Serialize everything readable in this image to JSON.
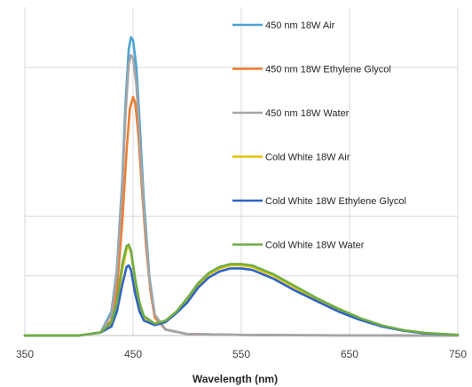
{
  "chart_data": {
    "type": "line",
    "title": "",
    "xlabel": "Wavelength (nm)",
    "ylabel": "",
    "xlim": [
      350,
      750
    ],
    "ylim": [
      0,
      1.0
    ],
    "x_ticks": [
      350,
      450,
      550,
      650,
      750
    ],
    "y_gridlines": [
      0.2,
      0.4
    ],
    "grid": "vertical and horizontal major gridlines",
    "legend_position": "right",
    "series": [
      {
        "name": "450 nm 18W Air",
        "color": "#4aa3d3",
        "points": [
          [
            350,
            0
          ],
          [
            400,
            0
          ],
          [
            420,
            0.01
          ],
          [
            430,
            0.08
          ],
          [
            435,
            0.22
          ],
          [
            440,
            0.52
          ],
          [
            443,
            0.78
          ],
          [
            446,
            0.96
          ],
          [
            448,
            1.0
          ],
          [
            450,
            0.99
          ],
          [
            453,
            0.9
          ],
          [
            456,
            0.72
          ],
          [
            460,
            0.45
          ],
          [
            465,
            0.2
          ],
          [
            470,
            0.07
          ],
          [
            480,
            0.02
          ],
          [
            500,
            0.005
          ],
          [
            550,
            0.002
          ],
          [
            600,
            0.001
          ],
          [
            750,
            0
          ]
        ]
      },
      {
        "name": "450 nm 18W Ethylene Glycol",
        "color": "#ed7d31",
        "points": [
          [
            350,
            0
          ],
          [
            400,
            0
          ],
          [
            420,
            0.01
          ],
          [
            430,
            0.05
          ],
          [
            435,
            0.15
          ],
          [
            440,
            0.38
          ],
          [
            444,
            0.62
          ],
          [
            447,
            0.76
          ],
          [
            450,
            0.8
          ],
          [
            452,
            0.78
          ],
          [
            455,
            0.67
          ],
          [
            458,
            0.5
          ],
          [
            462,
            0.3
          ],
          [
            466,
            0.15
          ],
          [
            470,
            0.06
          ],
          [
            480,
            0.02
          ],
          [
            500,
            0.005
          ],
          [
            550,
            0.002
          ],
          [
            600,
            0.001
          ],
          [
            750,
            0
          ]
        ]
      },
      {
        "name": "450 nm 18W Water",
        "color": "#a5a5a5",
        "points": [
          [
            350,
            0
          ],
          [
            400,
            0
          ],
          [
            420,
            0.01
          ],
          [
            430,
            0.07
          ],
          [
            435,
            0.21
          ],
          [
            440,
            0.5
          ],
          [
            443,
            0.74
          ],
          [
            446,
            0.91
          ],
          [
            448,
            0.94
          ],
          [
            450,
            0.93
          ],
          [
            453,
            0.84
          ],
          [
            456,
            0.67
          ],
          [
            460,
            0.42
          ],
          [
            465,
            0.19
          ],
          [
            470,
            0.07
          ],
          [
            480,
            0.02
          ],
          [
            500,
            0.005
          ],
          [
            550,
            0.002
          ],
          [
            600,
            0.001
          ],
          [
            750,
            0
          ]
        ]
      },
      {
        "name": "Cold White 18W Air",
        "color": "#e6c200",
        "points": [
          [
            350,
            0
          ],
          [
            400,
            0
          ],
          [
            420,
            0.01
          ],
          [
            430,
            0.04
          ],
          [
            435,
            0.1
          ],
          [
            440,
            0.22
          ],
          [
            444,
            0.29
          ],
          [
            446,
            0.3
          ],
          [
            448,
            0.28
          ],
          [
            452,
            0.18
          ],
          [
            456,
            0.1
          ],
          [
            460,
            0.06
          ],
          [
            470,
            0.04
          ],
          [
            480,
            0.05
          ],
          [
            490,
            0.08
          ],
          [
            500,
            0.12
          ],
          [
            510,
            0.17
          ],
          [
            520,
            0.205
          ],
          [
            530,
            0.225
          ],
          [
            540,
            0.235
          ],
          [
            550,
            0.235
          ],
          [
            560,
            0.23
          ],
          [
            570,
            0.215
          ],
          [
            580,
            0.2
          ],
          [
            600,
            0.16
          ],
          [
            620,
            0.12
          ],
          [
            640,
            0.085
          ],
          [
            660,
            0.055
          ],
          [
            680,
            0.032
          ],
          [
            700,
            0.017
          ],
          [
            720,
            0.008
          ],
          [
            750,
            0.002
          ]
        ]
      },
      {
        "name": "Cold White 18W Ethylene Glycol",
        "color": "#2e63c4",
        "points": [
          [
            350,
            0
          ],
          [
            400,
            0
          ],
          [
            420,
            0.01
          ],
          [
            430,
            0.03
          ],
          [
            435,
            0.08
          ],
          [
            440,
            0.17
          ],
          [
            444,
            0.23
          ],
          [
            446,
            0.235
          ],
          [
            448,
            0.22
          ],
          [
            452,
            0.14
          ],
          [
            456,
            0.08
          ],
          [
            460,
            0.05
          ],
          [
            470,
            0.035
          ],
          [
            480,
            0.045
          ],
          [
            490,
            0.075
          ],
          [
            500,
            0.11
          ],
          [
            510,
            0.16
          ],
          [
            520,
            0.195
          ],
          [
            530,
            0.215
          ],
          [
            540,
            0.225
          ],
          [
            550,
            0.225
          ],
          [
            560,
            0.22
          ],
          [
            570,
            0.205
          ],
          [
            580,
            0.19
          ],
          [
            600,
            0.15
          ],
          [
            620,
            0.115
          ],
          [
            640,
            0.08
          ],
          [
            660,
            0.052
          ],
          [
            680,
            0.03
          ],
          [
            700,
            0.016
          ],
          [
            720,
            0.007
          ],
          [
            750,
            0.002
          ]
        ]
      },
      {
        "name": "Cold White 18W Water",
        "color": "#70ad47",
        "points": [
          [
            350,
            0
          ],
          [
            400,
            0
          ],
          [
            420,
            0.01
          ],
          [
            430,
            0.045
          ],
          [
            435,
            0.11
          ],
          [
            440,
            0.24
          ],
          [
            444,
            0.3
          ],
          [
            446,
            0.305
          ],
          [
            448,
            0.285
          ],
          [
            452,
            0.19
          ],
          [
            456,
            0.11
          ],
          [
            460,
            0.065
          ],
          [
            470,
            0.04
          ],
          [
            480,
            0.05
          ],
          [
            490,
            0.08
          ],
          [
            500,
            0.125
          ],
          [
            510,
            0.175
          ],
          [
            520,
            0.21
          ],
          [
            530,
            0.23
          ],
          [
            540,
            0.24
          ],
          [
            550,
            0.24
          ],
          [
            560,
            0.235
          ],
          [
            570,
            0.22
          ],
          [
            580,
            0.205
          ],
          [
            600,
            0.165
          ],
          [
            620,
            0.125
          ],
          [
            640,
            0.09
          ],
          [
            660,
            0.058
          ],
          [
            680,
            0.034
          ],
          [
            700,
            0.018
          ],
          [
            720,
            0.009
          ],
          [
            750,
            0.002
          ]
        ]
      }
    ]
  }
}
